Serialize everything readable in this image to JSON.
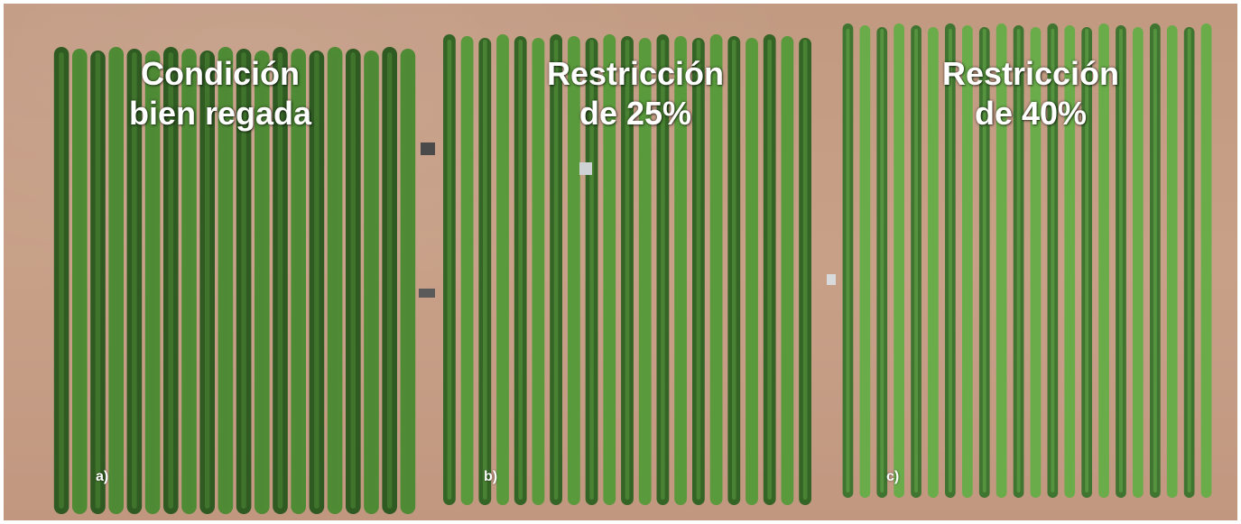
{
  "plots": [
    {
      "label_line1": "Condición",
      "label_line2": "bien regada",
      "letter": "a)",
      "color_dark": "#2f5a22",
      "color_light": "#4f8a35"
    },
    {
      "label_line1": "Restricción",
      "label_line2": "de 25%",
      "letter": "b)",
      "color_dark": "#356526",
      "color_light": "#5a9a3c"
    },
    {
      "label_line1": "Restricción",
      "label_line2": "de 40%",
      "letter": "c)",
      "color_dark": "#3f7530",
      "color_light": "#6aac4a"
    }
  ],
  "soil_color": "#c69e86"
}
